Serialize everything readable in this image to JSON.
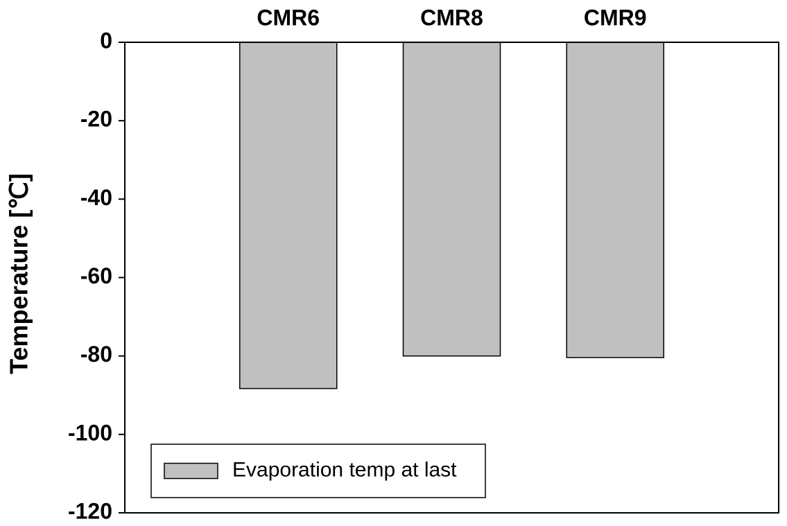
{
  "chart_data": {
    "type": "bar",
    "y_label": "Temperature [℃]",
    "categories": [
      "CMR6",
      "CMR8",
      "CMR9"
    ],
    "series": [
      {
        "name": "Evaporation temp at last",
        "color": "#c0c0c0",
        "values": [
          -88.3,
          -80.0,
          -80.4
        ]
      }
    ],
    "ylim": [
      -120,
      0
    ],
    "yticks": [
      0,
      -20,
      -40,
      -60,
      -80,
      -100,
      -120
    ],
    "legend": "lower left",
    "grid": false
  }
}
